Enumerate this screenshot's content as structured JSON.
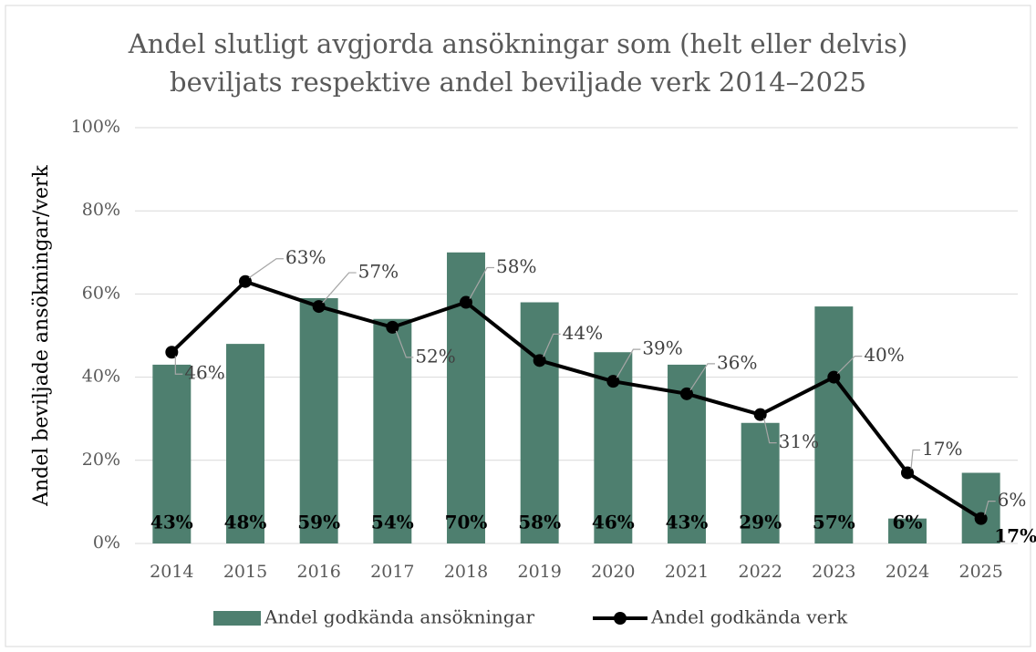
{
  "chart_data": {
    "type": "combo",
    "title": [
      "Andel slutligt avgjorda ansökningar som (helt eller delvis)",
      "beviljats respektive andel beviljade verk 2014–2025"
    ],
    "y_label": "Andel beviljade ansökningar/verk",
    "categories": [
      "2014",
      "2015",
      "2016",
      "2017",
      "2018",
      "2019",
      "2020",
      "2021",
      "2022",
      "2023",
      "2024",
      "2025"
    ],
    "series": [
      {
        "name": "Andel godkända ansökningar",
        "type": "bar",
        "color": "#4e7f6f",
        "values": [
          43,
          48,
          59,
          54,
          70,
          58,
          46,
          43,
          29,
          57,
          6,
          17
        ],
        "value_labels": [
          "43%",
          "48%",
          "59%",
          "54%",
          "70%",
          "58%",
          "46%",
          "43%",
          "29%",
          "57%",
          "6%",
          "17%"
        ]
      },
      {
        "name": "Andel godkända verk",
        "type": "line",
        "color": "#000000",
        "values": [
          46,
          63,
          57,
          52,
          58,
          44,
          39,
          36,
          31,
          40,
          17,
          6
        ],
        "value_labels": [
          "46%",
          "63%",
          "57%",
          "52%",
          "58%",
          "44%",
          "39%",
          "36%",
          "31%",
          "40%",
          "17%",
          "6%"
        ]
      }
    ],
    "ylim": [
      0,
      100
    ],
    "yticks": [
      {
        "value": 0,
        "label": "0%"
      },
      {
        "value": 20,
        "label": "20%"
      },
      {
        "value": 40,
        "label": "40%"
      },
      {
        "value": 60,
        "label": "60%"
      },
      {
        "value": 80,
        "label": "80%"
      },
      {
        "value": 100,
        "label": "100%"
      }
    ],
    "grid": true,
    "legend": "bottom"
  }
}
